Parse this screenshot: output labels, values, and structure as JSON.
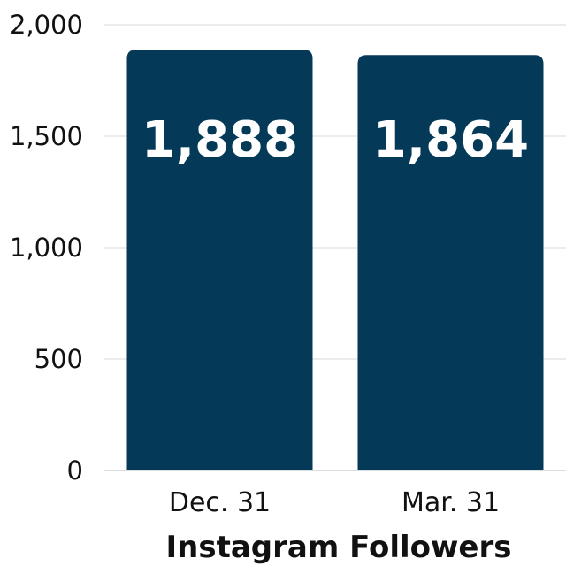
{
  "chart_data": {
    "type": "bar",
    "categories": [
      "Dec. 31",
      "Mar. 31"
    ],
    "values": [
      1888,
      1864
    ],
    "value_labels": [
      "1,888",
      "1,864"
    ],
    "xlabel": "Instagram Followers",
    "ylabel": "",
    "ylim": [
      0,
      2000
    ],
    "yticks": [
      0,
      500,
      1000,
      1500,
      2000
    ],
    "ytick_labels": [
      "0",
      "500",
      "1,000",
      "1,500",
      "2,000"
    ],
    "grid": true,
    "colors": {
      "bar": "#043a58",
      "grid": "#d9d9d9"
    }
  }
}
